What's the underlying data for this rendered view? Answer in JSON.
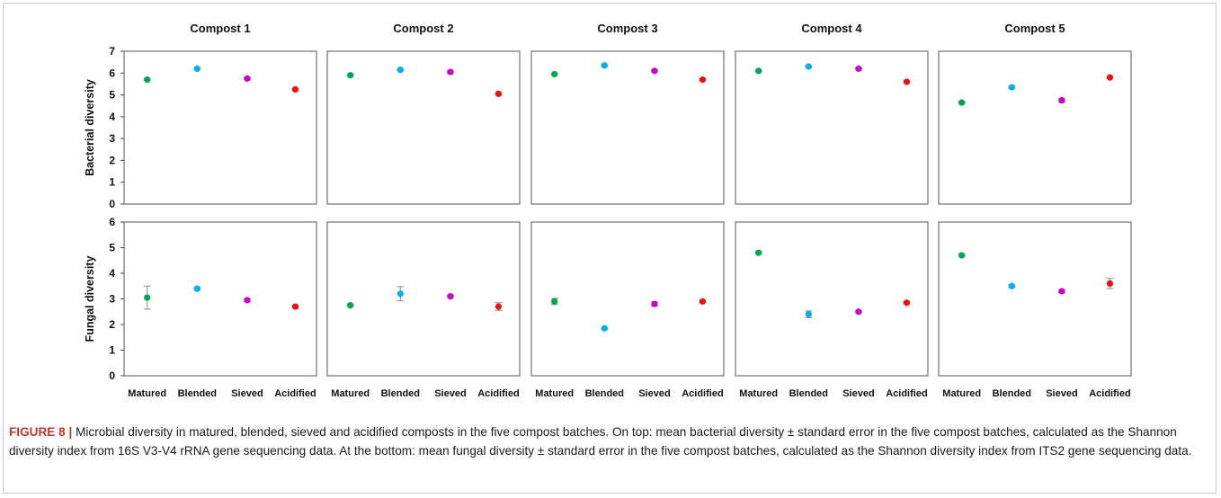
{
  "chart_data": {
    "type": "scatter",
    "columns": [
      "Compost 1",
      "Compost 2",
      "Compost 3",
      "Compost 4",
      "Compost 5"
    ],
    "categories": [
      "Matured",
      "Blended",
      "Sieved",
      "Acidified"
    ],
    "colors": {
      "Matured": "#00a651",
      "Blended": "#00aeef",
      "Sieved": "#cc00cc",
      "Acidified": "#ee1111",
      "error_bar": "#8c8c8c"
    },
    "rows": [
      {
        "ylabel": "Bacterial diversity",
        "ylim": [
          0,
          7
        ],
        "yticks": [
          "0",
          "1",
          "2",
          "3",
          "4",
          "5",
          "6",
          "7"
        ],
        "panels": [
          {
            "values": [
              5.7,
              6.2,
              5.75,
              5.25
            ],
            "errors": [
              0.03,
              0.03,
              0.04,
              0.04
            ]
          },
          {
            "values": [
              5.9,
              6.15,
              6.05,
              5.05
            ],
            "errors": [
              0.03,
              0.03,
              0.04,
              0.05
            ]
          },
          {
            "values": [
              5.95,
              6.35,
              6.1,
              5.7
            ],
            "errors": [
              0.03,
              0.03,
              0.04,
              0.04
            ]
          },
          {
            "values": [
              6.1,
              6.3,
              6.2,
              5.6
            ],
            "errors": [
              0.03,
              0.05,
              0.04,
              0.04
            ]
          },
          {
            "values": [
              4.65,
              5.35,
              4.75,
              5.8
            ],
            "errors": [
              0.04,
              0.05,
              0.08,
              0.04
            ]
          }
        ]
      },
      {
        "ylabel": "Fungal diversity",
        "ylim": [
          0,
          6
        ],
        "yticks": [
          "0",
          "1",
          "2",
          "3",
          "4",
          "5",
          "6"
        ],
        "panels": [
          {
            "values": [
              3.05,
              3.4,
              2.95,
              2.7
            ],
            "errors": [
              0.45,
              0.04,
              0.06,
              0.05
            ]
          },
          {
            "values": [
              2.75,
              3.2,
              3.1,
              2.7
            ],
            "errors": [
              0.04,
              0.28,
              0.04,
              0.15
            ]
          },
          {
            "values": [
              2.9,
              1.85,
              2.8,
              2.9
            ],
            "errors": [
              0.12,
              0.03,
              0.08,
              0.04
            ]
          },
          {
            "values": [
              4.8,
              2.4,
              2.5,
              2.85
            ],
            "errors": [
              0.04,
              0.13,
              0.04,
              0.04
            ]
          },
          {
            "values": [
              4.7,
              3.5,
              3.3,
              3.6
            ],
            "errors": [
              0.04,
              0.04,
              0.05,
              0.2
            ]
          }
        ]
      }
    ]
  },
  "caption": {
    "label": "FIGURE 8 |",
    "text": "Microbial diversity in matured, blended, sieved and acidified composts in the five compost batches. On top: mean bacterial diversity ± standard error in the five compost batches, calculated as the Shannon diversity index from 16S V3-V4 rRNA gene sequencing data. At the bottom: mean fungal diversity ± standard error in the five compost batches, calculated as the Shannon diversity index from ITS2 gene sequencing data."
  }
}
